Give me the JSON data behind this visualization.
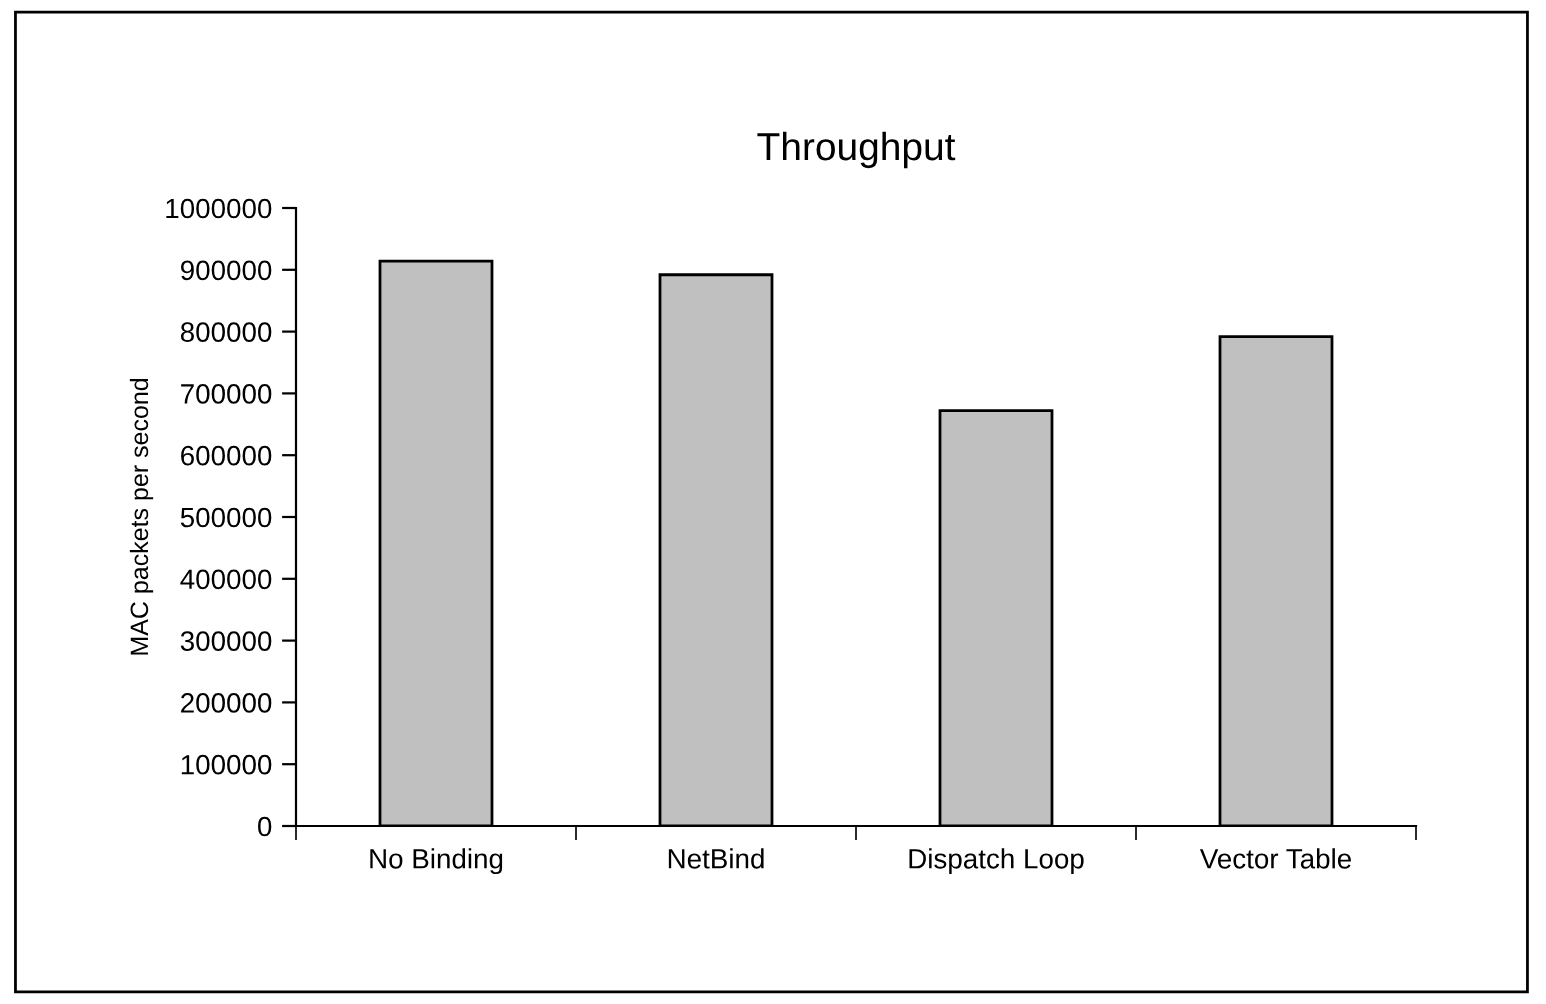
{
  "chart_data": {
    "type": "bar",
    "title": "Throughput",
    "ylabel": "MAC packets per second",
    "categories": [
      "No Binding",
      "NetBind",
      "Dispatch Loop",
      "Vector Table"
    ],
    "values": [
      914000,
      892000,
      672000,
      792000
    ],
    "color": "#c0c0c0",
    "ylim": [
      0,
      1000000
    ],
    "yticks": [
      0,
      100000,
      200000,
      300000,
      400000,
      500000,
      600000,
      700000,
      800000,
      900000,
      1000000
    ],
    "grid": false,
    "legend": false
  }
}
